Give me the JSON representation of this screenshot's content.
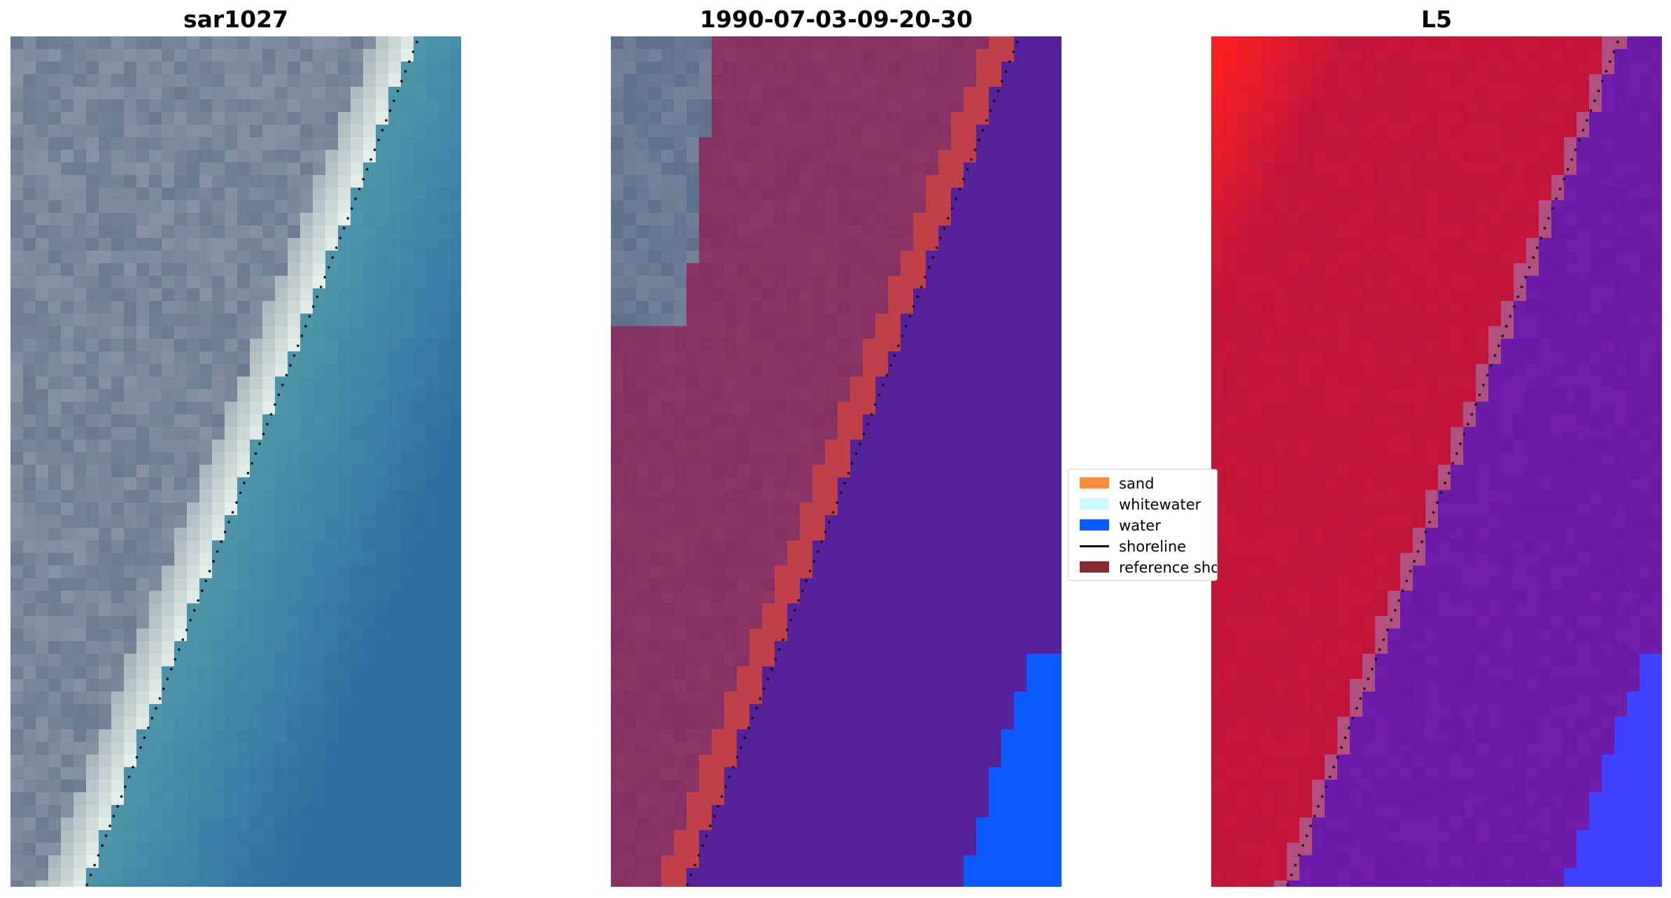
{
  "panels": [
    {
      "title": "sar1027",
      "kind": "rgb"
    },
    {
      "title": "1990-07-03-09-20-30",
      "kind": "classified"
    },
    {
      "title": "L5",
      "kind": "probability"
    }
  ],
  "legend": {
    "items": [
      {
        "label": "sand",
        "color": "#ff8c3c",
        "kind": "patch"
      },
      {
        "label": "whitewater",
        "color": "#c8fcfc",
        "kind": "patch"
      },
      {
        "label": "water",
        "color": "#0a5aff",
        "kind": "patch"
      },
      {
        "label": "shoreline",
        "color": "#000000",
        "kind": "line"
      },
      {
        "label": "reference shoreline",
        "color": "#8c2a30",
        "kind": "patch"
      }
    ]
  },
  "colors": {
    "land_rgb": "#6b7a92",
    "water_rgb": "#2f6fa0",
    "beach_rgb": "#e6f0ea",
    "land_class": "#833062",
    "reference_band": "#c0404a",
    "water_class": "#55229a",
    "water_edge": "#0a5aff",
    "prob_land": "#c0143a",
    "prob_land_bright": "#ff2020",
    "prob_water": "#6a1aa8",
    "prob_edge": "#4040ff"
  }
}
